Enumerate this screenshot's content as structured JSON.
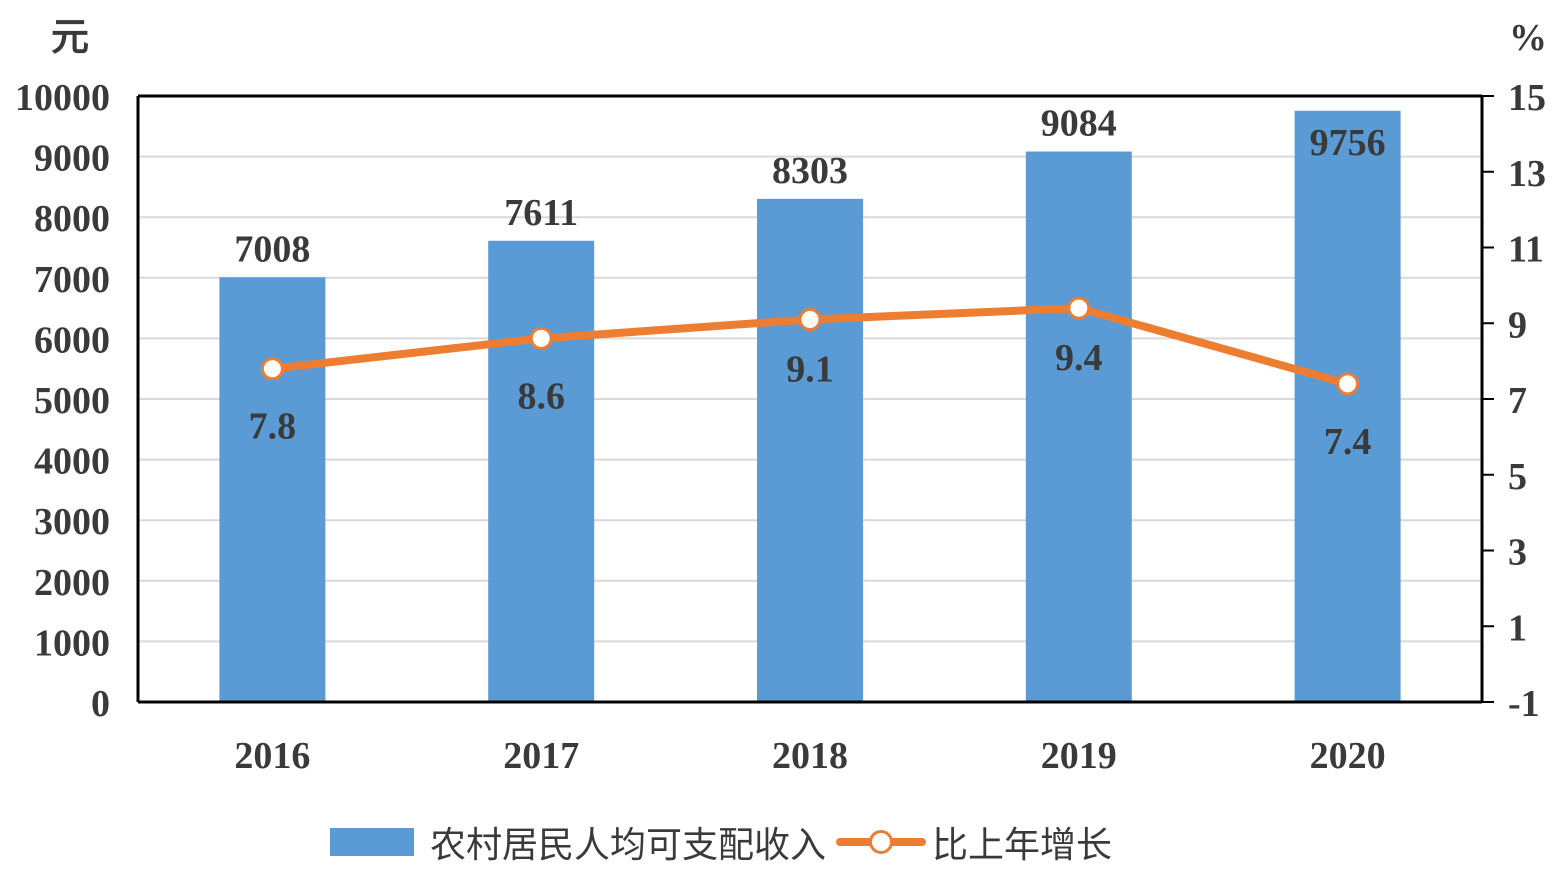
{
  "chart_data": {
    "type": "bar",
    "categories": [
      "2016",
      "2017",
      "2018",
      "2019",
      "2020"
    ],
    "series": [
      {
        "name": "农村居民人均可支配收入",
        "kind": "bar",
        "axis": "left",
        "values": [
          7008,
          7611,
          8303,
          9084,
          9756
        ],
        "color": "#5b9bd5"
      },
      {
        "name": "比上年增长",
        "kind": "line",
        "axis": "right",
        "values": [
          7.8,
          8.6,
          9.1,
          9.4,
          7.4
        ],
        "color": "#ed7d31"
      }
    ],
    "y_left": {
      "unit": "元",
      "min": 0,
      "max": 10000,
      "ticks": [
        0,
        1000,
        2000,
        3000,
        4000,
        5000,
        6000,
        7000,
        8000,
        9000,
        10000
      ]
    },
    "y_right": {
      "unit": "%",
      "min": -1,
      "max": 15,
      "ticks": [
        -1,
        1,
        3,
        5,
        7,
        9,
        11,
        13,
        15
      ]
    },
    "grid": true,
    "legend_position": "bottom"
  }
}
